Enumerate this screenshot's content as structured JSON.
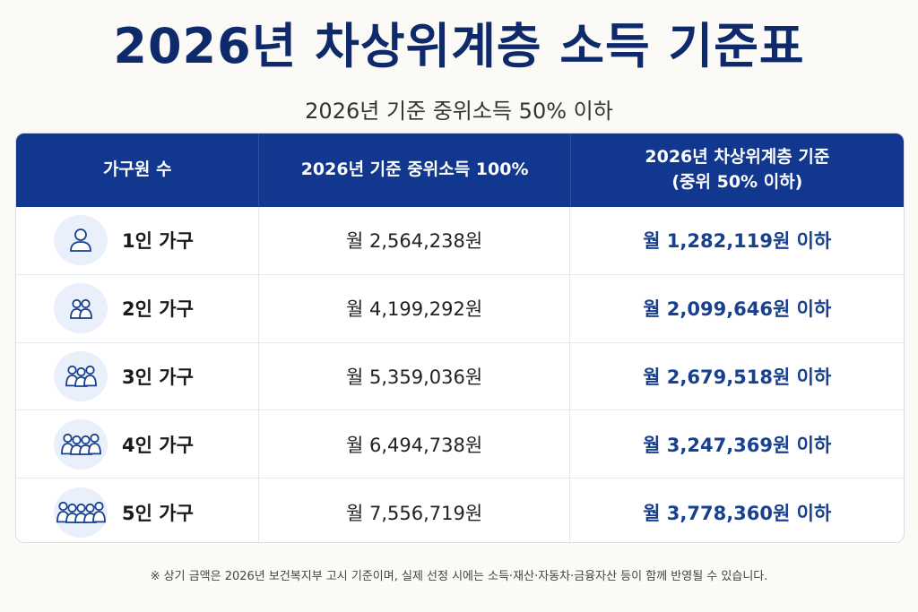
{
  "title": "2026년 차상위계층 소득 기준표",
  "subtitle": "2026년 기준 중위소득 50% 이하",
  "table": {
    "headers": {
      "col1": "가구원 수",
      "col2": "2026년 기준 중위소득 100%",
      "col3_line1": "2026년 차상위계층 기준",
      "col3_line2": "(중위 50% 이하)"
    },
    "rows": [
      {
        "label": "1인 가구",
        "people": 1,
        "median": "월  2,564,238원",
        "threshold": "월 1,282,119원 이하",
        "icon": "person-icon"
      },
      {
        "label": "2인 가구",
        "people": 2,
        "median": "월  4,199,292원",
        "threshold": "월 2,099,646원 이하",
        "icon": "two-people-icon"
      },
      {
        "label": "3인 가구",
        "people": 3,
        "median": "월  5,359,036원",
        "threshold": "월 2,679,518원 이하",
        "icon": "three-people-icon"
      },
      {
        "label": "4인 가구",
        "people": 4,
        "median": "월  6,494,738원",
        "threshold": "월 3,247,369원 이하",
        "icon": "four-people-icon"
      },
      {
        "label": "5인 가구",
        "people": 5,
        "median": "월  7,556,719원",
        "threshold": "월 3,778,360원 이하",
        "icon": "five-people-icon"
      }
    ]
  },
  "note": "※ 상기 금액은 2026년 보건복지부 고시 기준이며, 실제 선정 시에는 소득·재산·자동차·금융자산 등이 함께 반영될 수 있습니다.",
  "colors": {
    "title": "#0e2a6b",
    "header_bg": "#11378f",
    "threshold_text": "#17408f",
    "icon_bg": "#e9f0fb",
    "icon_stroke": "#17408f"
  }
}
